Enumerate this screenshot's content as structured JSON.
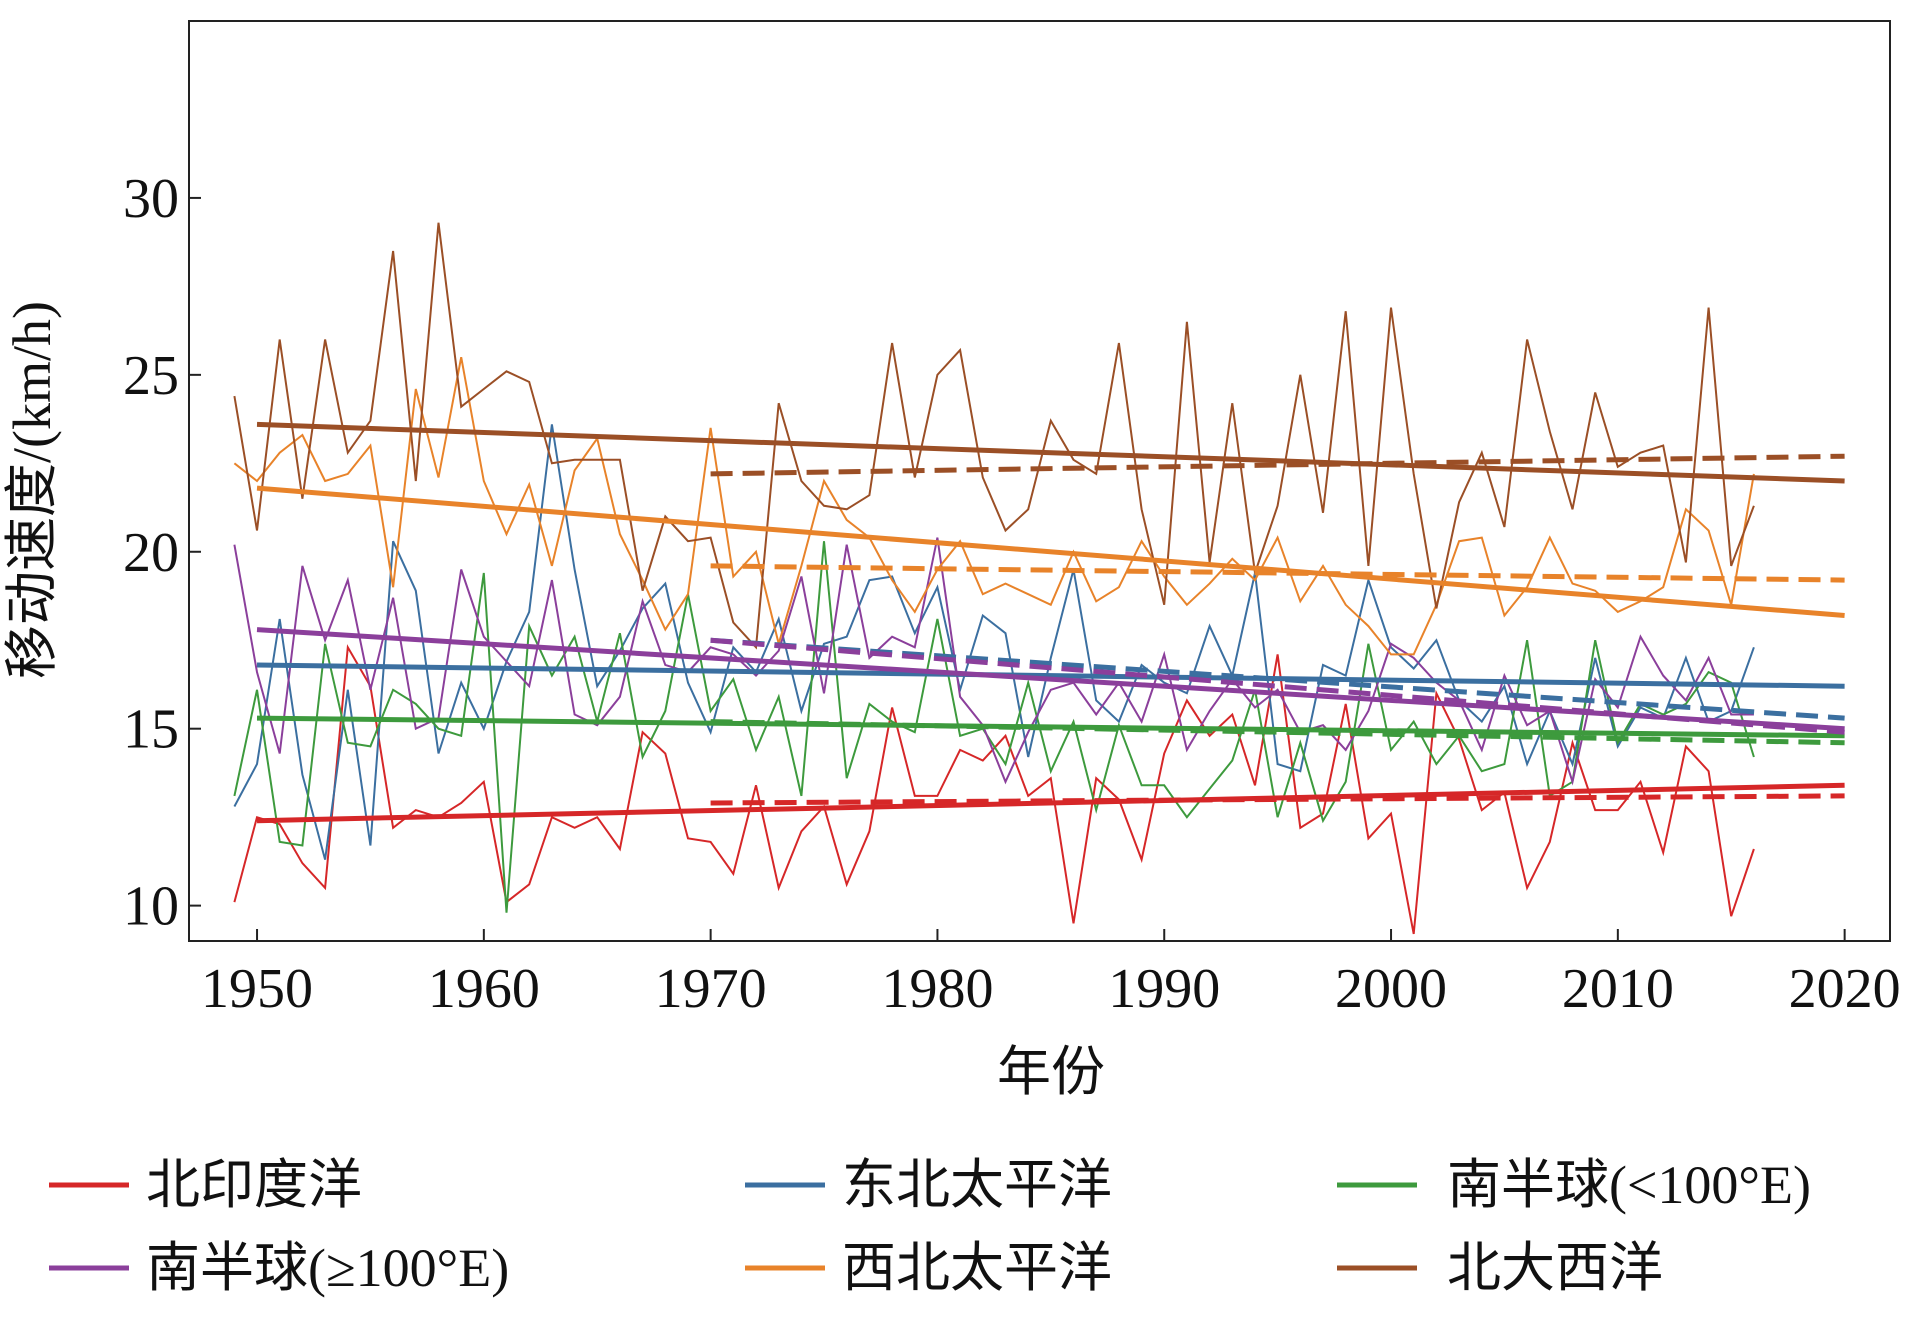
{
  "chart_data": {
    "type": "line",
    "xlabel": "年份",
    "ylabel": "移动速度/(km/h)",
    "xlim": [
      1947,
      2022
    ],
    "ylim": [
      9,
      35
    ],
    "xticks": [
      1950,
      1960,
      1970,
      1980,
      1990,
      2000,
      2010,
      2020
    ],
    "yticks": [
      10,
      15,
      20,
      25,
      30
    ],
    "x": [
      1949,
      1950,
      1951,
      1952,
      1953,
      1954,
      1955,
      1956,
      1957,
      1958,
      1959,
      1960,
      1961,
      1962,
      1963,
      1964,
      1965,
      1966,
      1967,
      1968,
      1969,
      1970,
      1971,
      1972,
      1973,
      1974,
      1975,
      1976,
      1977,
      1978,
      1979,
      1980,
      1981,
      1982,
      1983,
      1984,
      1985,
      1986,
      1987,
      1988,
      1989,
      1990,
      1991,
      1992,
      1993,
      1994,
      1995,
      1996,
      1997,
      1998,
      1999,
      2000,
      2001,
      2002,
      2003,
      2004,
      2005,
      2006,
      2007,
      2008,
      2009,
      2010,
      2011,
      2012,
      2013,
      2014,
      2015,
      2016
    ],
    "series": [
      {
        "name": "北印度洋",
        "color": "#d62728",
        "values": [
          10.1,
          12.5,
          12.3,
          11.2,
          10.5,
          17.3,
          16.2,
          12.2,
          12.7,
          12.5,
          12.9,
          13.5,
          10.1,
          10.6,
          12.5,
          12.2,
          12.5,
          11.6,
          14.9,
          14.3,
          11.9,
          11.8,
          10.9,
          13.4,
          10.5,
          12.1,
          12.8,
          10.6,
          12.1,
          15.6,
          13.1,
          13.1,
          14.4,
          14.1,
          14.8,
          13.1,
          13.6,
          9.5,
          13.6,
          13.0,
          11.3,
          14.3,
          15.8,
          14.8,
          15.4,
          13.4,
          17.1,
          12.2,
          12.6,
          15.7,
          11.9,
          12.6,
          9.2,
          16.0,
          14.7,
          12.7,
          13.2,
          10.5,
          11.8,
          14.6,
          12.7,
          12.7,
          13.5,
          11.5,
          14.5,
          13.8,
          9.7,
          11.6
        ],
        "trend": {
          "x": [
            1950,
            2020
          ],
          "values": [
            12.4,
            13.4
          ]
        },
        "trend_1970": {
          "x": [
            1970,
            2020
          ],
          "values": [
            12.9,
            13.1
          ]
        }
      },
      {
        "name": "东北太平洋",
        "color": "#3b6fa0",
        "values": [
          12.8,
          14.0,
          18.1,
          13.7,
          11.3,
          16.1,
          11.7,
          20.3,
          18.9,
          14.3,
          16.3,
          15.0,
          16.9,
          18.3,
          23.6,
          19.5,
          16.2,
          17.2,
          18.4,
          19.1,
          16.3,
          14.9,
          17.3,
          16.6,
          18.1,
          15.5,
          17.4,
          17.6,
          19.2,
          19.3,
          17.7,
          19.0,
          16.1,
          18.2,
          17.7,
          14.2,
          17.0,
          19.5,
          15.8,
          15.2,
          16.8,
          16.3,
          16.0,
          17.9,
          16.5,
          19.4,
          14.0,
          13.8,
          16.8,
          16.5,
          19.2,
          17.3,
          16.7,
          17.5,
          15.8,
          15.2,
          16.2,
          14.0,
          15.5,
          14.0,
          17.0,
          14.5,
          15.6,
          15.3,
          17.0,
          15.2,
          15.5,
          17.3
        ],
        "trend": {
          "x": [
            1950,
            2020
          ],
          "values": [
            16.8,
            16.2
          ]
        },
        "trend_1970": {
          "x": [
            1970,
            2020
          ],
          "values": [
            17.5,
            15.3
          ]
        }
      },
      {
        "name": "南半球(<100°E)",
        "color": "#3d9a3d",
        "values": [
          13.1,
          16.1,
          11.8,
          11.7,
          17.4,
          14.6,
          14.5,
          16.1,
          15.7,
          15.0,
          14.8,
          19.4,
          9.8,
          17.9,
          16.5,
          17.6,
          15.2,
          17.7,
          14.2,
          15.5,
          18.8,
          15.5,
          16.4,
          14.4,
          15.9,
          13.1,
          20.3,
          13.6,
          15.7,
          15.2,
          14.9,
          18.1,
          14.8,
          15.0,
          14.0,
          16.3,
          13.8,
          15.2,
          12.7,
          15.1,
          13.4,
          13.4,
          12.5,
          13.3,
          14.1,
          16.1,
          12.5,
          14.6,
          12.4,
          13.5,
          17.4,
          14.4,
          15.2,
          14.0,
          14.8,
          13.8,
          14.0,
          17.5,
          13.1,
          13.5,
          17.5,
          14.6,
          15.7,
          15.4,
          15.7,
          16.6,
          16.3,
          14.2
        ],
        "trend": {
          "x": [
            1950,
            2020
          ],
          "values": [
            15.3,
            14.8
          ]
        },
        "trend_1970": {
          "x": [
            1970,
            2020
          ],
          "values": [
            15.2,
            14.6
          ]
        }
      },
      {
        "name": "南半球(≥100°E)",
        "color": "#8b3f9b",
        "values": [
          20.2,
          16.6,
          14.3,
          19.6,
          17.5,
          19.2,
          16.1,
          18.7,
          15.0,
          15.3,
          19.5,
          17.6,
          16.9,
          16.2,
          19.2,
          15.4,
          15.1,
          15.9,
          18.6,
          16.8,
          16.6,
          17.3,
          17.1,
          16.5,
          17.2,
          19.3,
          16.0,
          20.2,
          17.0,
          17.6,
          17.3,
          20.4,
          15.9,
          15.1,
          13.5,
          14.9,
          16.1,
          16.3,
          15.4,
          16.3,
          15.2,
          17.1,
          14.4,
          15.5,
          16.4,
          15.6,
          16.1,
          14.9,
          15.1,
          14.4,
          15.5,
          17.4,
          17.0,
          16.3,
          15.8,
          14.4,
          16.5,
          15.1,
          15.5,
          13.5,
          16.4,
          15.6,
          17.6,
          16.5,
          15.8,
          17.0,
          15.4,
          15.4
        ],
        "trend": {
          "x": [
            1950,
            2020
          ],
          "values": [
            17.8,
            15.0
          ]
        },
        "trend_1970": {
          "x": [
            1970,
            2020
          ],
          "values": [
            17.5,
            14.9
          ]
        }
      },
      {
        "name": "西北太平洋",
        "color": "#e8832a",
        "values": [
          22.5,
          22.0,
          22.8,
          23.3,
          22.0,
          22.2,
          23.0,
          19.0,
          24.6,
          22.1,
          25.5,
          22.0,
          20.5,
          21.9,
          19.6,
          22.3,
          23.2,
          20.5,
          19.2,
          17.8,
          18.8,
          23.5,
          19.3,
          20.0,
          17.4,
          19.6,
          22.0,
          20.9,
          20.4,
          19.2,
          18.3,
          19.5,
          20.3,
          18.8,
          19.1,
          18.8,
          18.5,
          20.0,
          18.6,
          19.0,
          20.3,
          19.3,
          18.5,
          19.1,
          19.8,
          19.2,
          20.4,
          18.6,
          19.6,
          18.5,
          17.9,
          17.1,
          17.1,
          18.5,
          20.3,
          20.4,
          18.2,
          19.0,
          20.4,
          19.1,
          18.9,
          18.3,
          18.6,
          19.0,
          21.2,
          20.6,
          18.5,
          22.2
        ],
        "trend": {
          "x": [
            1950,
            2020
          ],
          "values": [
            21.8,
            18.2
          ]
        },
        "trend_1970": {
          "x": [
            1970,
            2020
          ],
          "values": [
            19.6,
            19.2
          ]
        }
      },
      {
        "name": "北大西洋",
        "color": "#9b4f26",
        "values": [
          24.4,
          20.6,
          26.0,
          21.5,
          26.0,
          22.8,
          23.7,
          28.5,
          22.0,
          29.3,
          24.1,
          24.6,
          25.1,
          24.8,
          22.5,
          22.6,
          22.6,
          22.6,
          18.9,
          21.0,
          20.3,
          20.4,
          18.0,
          17.3,
          24.2,
          22.0,
          21.3,
          21.2,
          21.6,
          25.9,
          22.1,
          25.0,
          25.7,
          22.1,
          20.6,
          21.2,
          23.7,
          22.6,
          22.2,
          25.9,
          21.2,
          18.5,
          26.5,
          19.7,
          24.2,
          19.4,
          21.3,
          25.0,
          21.1,
          26.8,
          19.6,
          26.9,
          22.2,
          18.4,
          21.4,
          22.8,
          20.7,
          26.0,
          23.4,
          21.2,
          24.5,
          22.4,
          22.8,
          23.0,
          19.7,
          26.9,
          19.6,
          21.3
        ],
        "trend": {
          "x": [
            1950,
            2020
          ],
          "values": [
            23.6,
            22.0
          ]
        },
        "trend_1970": {
          "x": [
            1970,
            2020
          ],
          "values": [
            22.2,
            22.7
          ]
        }
      }
    ]
  }
}
